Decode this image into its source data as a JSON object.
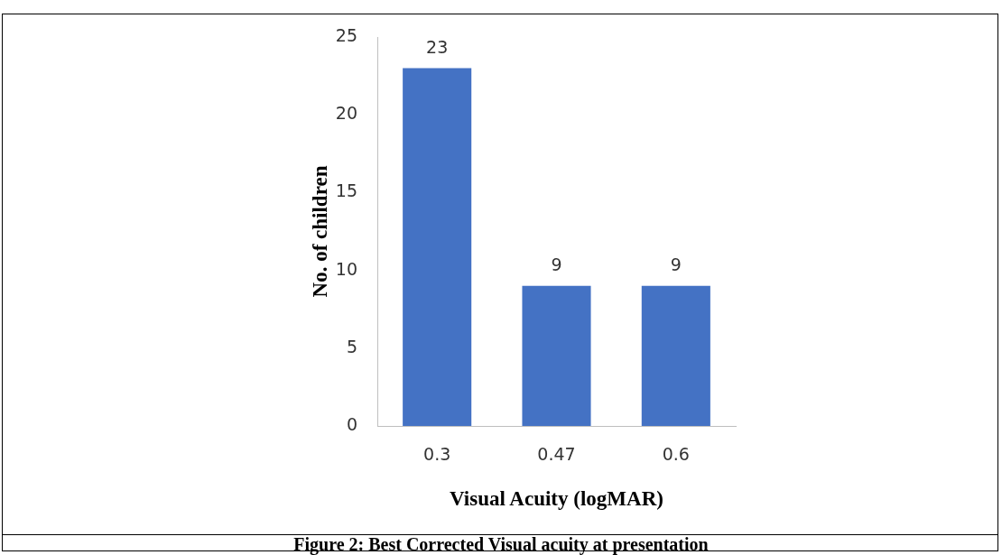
{
  "chart_data": {
    "type": "bar",
    "xlabel": "Visual Acuity (logMAR)",
    "ylabel": "No. of children",
    "categories": [
      "0.3",
      "0.47",
      "0.6"
    ],
    "values": [
      23,
      9,
      9
    ],
    "color": "#4472c4",
    "ylim": [
      0,
      25
    ],
    "yticks": [
      0,
      5,
      10,
      15,
      20,
      25
    ],
    "grid": false,
    "data_labels": true,
    "annotations": [
      "Figure 2: Best Corrected Visual acuity at presentation"
    ]
  }
}
